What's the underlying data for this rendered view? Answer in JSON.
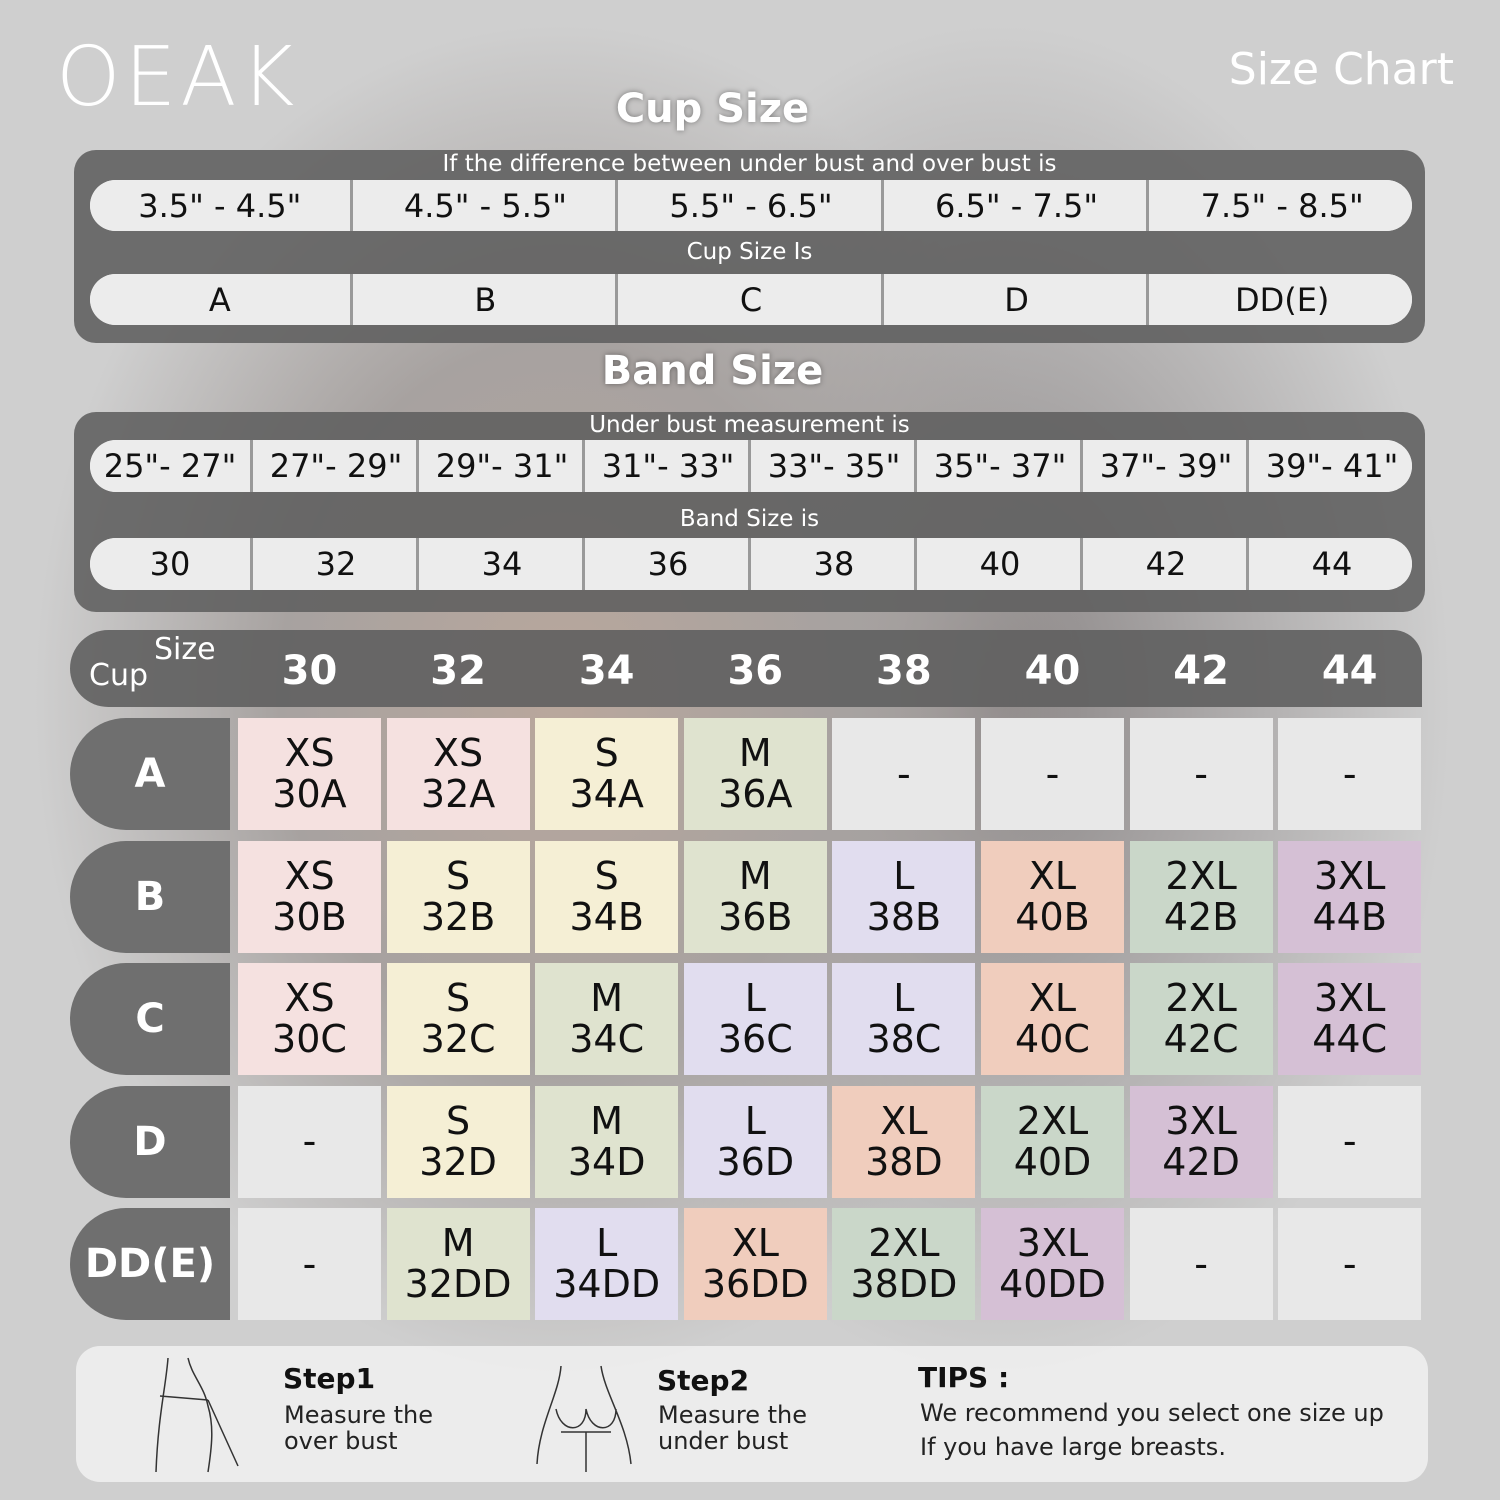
{
  "brand": "OEAK",
  "title": "Size Chart",
  "cup_section": {
    "title": "Cup Size",
    "caption1": "If the  difference between under bust and over bust is",
    "ranges": [
      "3.5\" -  4.5\"",
      "4.5\" -  5.5\"",
      "5.5\" -  6.5\"",
      "6.5\" -  7.5\"",
      "7.5\" -  8.5\""
    ],
    "caption2": "Cup Size Is",
    "cups": [
      "A",
      "B",
      "C",
      "D",
      "DD(E)"
    ]
  },
  "band_section": {
    "title": "Band Size",
    "caption1": "Under bust measurement is",
    "ranges": [
      "25\"- 27\"",
      "27\"- 29\"",
      "29\"- 31\"",
      "31\"- 33\"",
      "33\"- 35\"",
      "35\"- 37\"",
      "37\"- 39\"",
      "39\"- 41\""
    ],
    "caption2": "Band Size is",
    "bands": [
      "30",
      "32",
      "34",
      "36",
      "38",
      "40",
      "42",
      "44"
    ]
  },
  "table": {
    "corner_cup": "Cup",
    "corner_size": "Size",
    "columns": [
      "30",
      "32",
      "34",
      "36",
      "38",
      "40",
      "42",
      "44"
    ],
    "rows": [
      {
        "cup": "A",
        "cells": [
          "XS\n30A",
          "XS\n32A",
          "S\n34A",
          "M\n36A",
          "-",
          "-",
          "-",
          "-"
        ]
      },
      {
        "cup": "B",
        "cells": [
          "XS\n30B",
          "S\n32B",
          "S\n34B",
          "M\n36B",
          "L\n38B",
          "XL\n40B",
          "2XL\n42B",
          "3XL\n44B"
        ]
      },
      {
        "cup": "C",
        "cells": [
          "XS\n30C",
          "S\n32C",
          "M\n34C",
          "L\n36C",
          "L\n38C",
          "XL\n40C",
          "2XL\n42C",
          "3XL\n44C"
        ]
      },
      {
        "cup": "D",
        "cells": [
          "-",
          "S\n32D",
          "M\n34D",
          "L\n36D",
          "XL\n38D",
          "2XL\n40D",
          "3XL\n42D",
          "-"
        ]
      },
      {
        "cup": "DD(E)",
        "cells": [
          "-",
          "M\n32DD",
          "L\n34DD",
          "XL\n36DD",
          "2XL\n38DD",
          "3XL\n40DD",
          "-",
          "-"
        ]
      }
    ],
    "size_colors": {
      "XS": "#f5e1e0",
      "S": "#f5efd5",
      "M": "#dfe3cf",
      "L": "#e1ddef",
      "XL": "#f0cdbd",
      "2XL": "#cad7c9",
      "3XL": "#d5c0d5",
      "-": "#e8e8e8"
    }
  },
  "steps": [
    {
      "title": "Step1",
      "text": "Measure the\nover bust",
      "icon": "measure-over-bust-icon"
    },
    {
      "title": "Step2",
      "text": "Measure the\nunder bust",
      "icon": "measure-under-bust-icon"
    }
  ],
  "tips": {
    "title": "TIPS :",
    "line1": "We recommend you select one size up",
    "line2": "If you have large breasts."
  }
}
